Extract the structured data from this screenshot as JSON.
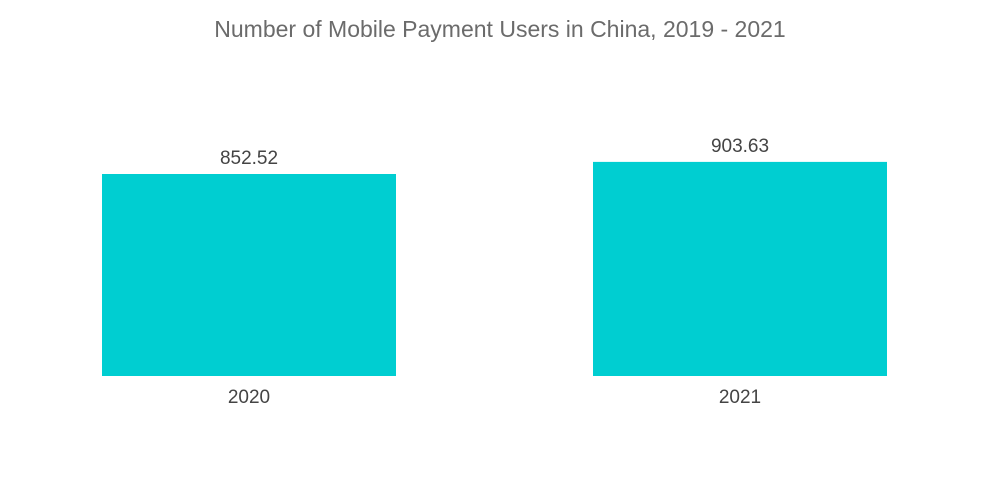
{
  "chart_data": {
    "type": "bar",
    "title": "Number of Mobile Payment Users in China, 2019 - 2021",
    "categories": [
      "2020",
      "2021"
    ],
    "values": [
      852.52,
      903.63
    ],
    "value_labels": [
      "852.52",
      "903.63"
    ],
    "xlabel": "",
    "ylabel": "",
    "ylim": [
      0,
      1000
    ],
    "grid": false,
    "legend": "none",
    "bar_color": "#00ced1"
  }
}
